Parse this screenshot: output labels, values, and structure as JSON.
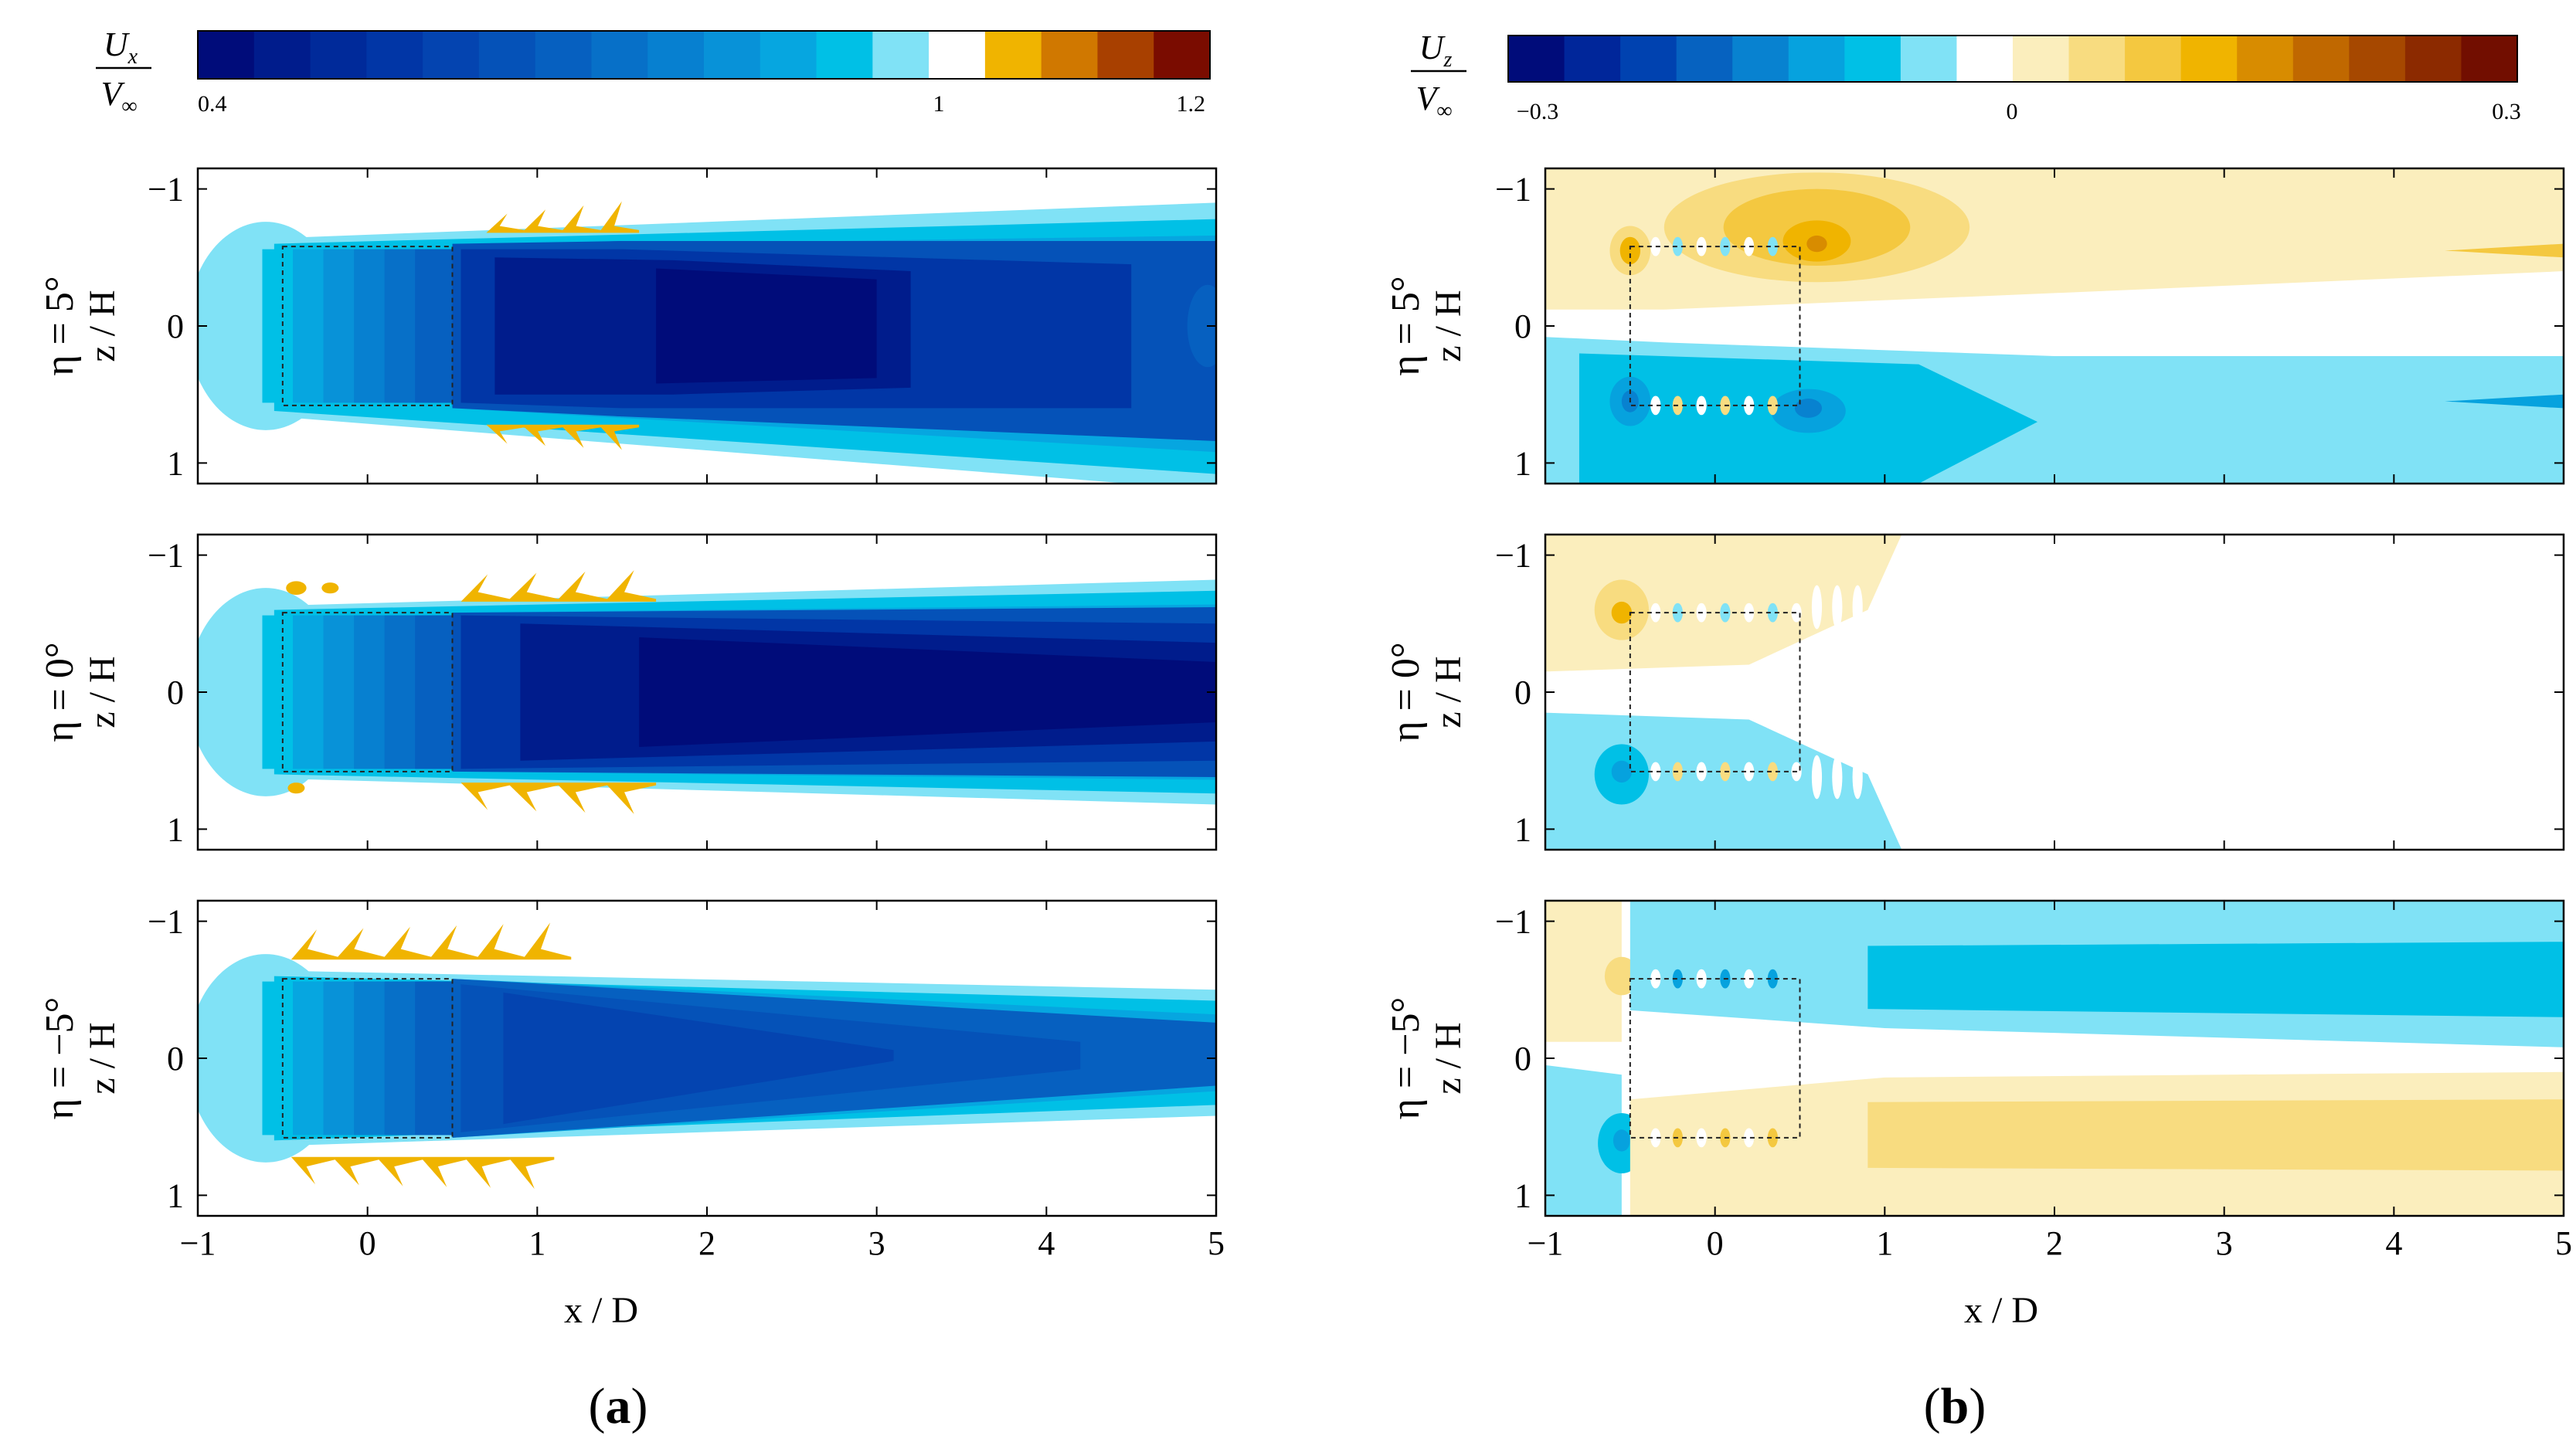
{
  "colormap_ux": [
    "#000c7a",
    "#001c8c",
    "#002a9a",
    "#0136a6",
    "#0444b0",
    "#0552b8",
    "#0660c0",
    "#0770c8",
    "#0780d0",
    "#0892d8",
    "#06a6e0",
    "#00c0e6",
    "#80e2f6",
    "#ffffff",
    "#f0b400",
    "#d07800",
    "#a84000",
    "#7a0c00"
  ],
  "colormap_uz": [
    "#000c7a",
    "#00269a",
    "#0042b0",
    "#0662c0",
    "#0882d0",
    "#06a2de",
    "#00c0e6",
    "#80e2f6",
    "#ffffff",
    "#fbeebd",
    "#f8dc80",
    "#f4c840",
    "#f0b400",
    "#d88c00",
    "#c06800",
    "#a64800",
    "#8c2a00",
    "#720e00"
  ],
  "chart_data": [
    {
      "type": "heatmap",
      "panel_label": "a",
      "colorbar": {
        "label_numerator": "U",
        "label_numerator_sub": "x",
        "label_denominator": "V",
        "label_denominator_sub": "∞",
        "range": [
          0.4,
          1.2
        ],
        "tick_labels": [
          "0.4",
          "1",
          "1.2"
        ],
        "tick_values": [
          0.4,
          1.0,
          1.2
        ]
      },
      "xlabel": "x / D",
      "ylabel": "z / H",
      "xlim": [
        -1,
        5
      ],
      "ylim": [
        -1.15,
        1.15
      ],
      "x_ticks": [
        "−1",
        "0",
        "1",
        "2",
        "3",
        "4",
        "5"
      ],
      "y_ticks": [
        "−1",
        "0",
        "1"
      ],
      "subplots": [
        {
          "row_label": "η = 5°",
          "case": 1
        },
        {
          "row_label": "η = 0°",
          "case": 0
        },
        {
          "row_label": "η = −5°",
          "case": -1
        }
      ]
    },
    {
      "type": "heatmap",
      "panel_label": "b",
      "colorbar": {
        "label_numerator": "U",
        "label_numerator_sub": "z",
        "label_denominator": "V",
        "label_denominator_sub": "∞",
        "range": [
          -0.3,
          0.3
        ],
        "tick_labels": [
          "−0.3",
          "0",
          "0.3"
        ],
        "tick_values": [
          -0.3,
          0.0,
          0.3
        ]
      },
      "xlabel": "x / D",
      "ylabel": "z / H",
      "xlim": [
        -1,
        5
      ],
      "ylim": [
        -1.15,
        1.15
      ],
      "x_ticks": [
        "−1",
        "0",
        "1",
        "2",
        "3",
        "4",
        "5"
      ],
      "y_ticks": [
        "−1",
        "0",
        "1"
      ],
      "subplots": [
        {
          "row_label": "η = 5°",
          "case": 1
        },
        {
          "row_label": "η = 0°",
          "case": 0
        },
        {
          "row_label": "η = −5°",
          "case": -1
        }
      ]
    }
  ]
}
